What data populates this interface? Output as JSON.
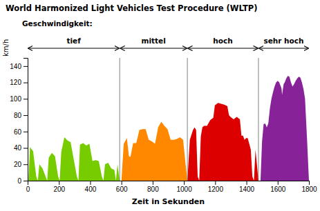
{
  "chart_data": {
    "type": "area",
    "title": "World Harmonized Light Vehicles Test Procedure (WLTP)",
    "x_label": "Zeit in Sekunden",
    "y_label": "km/h",
    "annotation": "Geschwindigkeit:",
    "phase_labels": [
      "tief",
      "mittel",
      "hoch",
      "sehr hoch"
    ],
    "phase_boundaries": [
      0,
      589,
      1022,
      1477,
      1800
    ],
    "xlim": [
      0,
      1800
    ],
    "ylim": [
      0,
      150
    ],
    "xticks": [
      0,
      200,
      400,
      600,
      800,
      1000,
      1200,
      1400,
      1600,
      1800
    ],
    "yticks": [
      0,
      20,
      40,
      60,
      80,
      100,
      120,
      140
    ],
    "grid": false,
    "series": [
      {
        "color": "#77CC00",
        "x": [
          0,
          5,
          15,
          35,
          55,
          65,
          75,
          95,
          115,
          125,
          135,
          155,
          175,
          195,
          205,
          215,
          235,
          255,
          275,
          295,
          315,
          325,
          335,
          355,
          375,
          395,
          415,
          435,
          455,
          475,
          485,
          495,
          515,
          535,
          555,
          565,
          575,
          589
        ],
        "values": [
          0,
          0,
          41,
          36,
          5,
          0,
          20,
          15,
          5,
          0,
          28,
          34,
          30,
          5,
          0,
          35,
          53,
          49,
          47,
          26,
          5,
          0,
          44,
          46,
          43,
          45,
          24,
          25,
          24,
          5,
          0,
          20,
          22,
          15,
          13,
          0,
          20,
          0
        ]
      },
      {
        "color": "#FF8800",
        "x": [
          589,
          600,
          615,
          635,
          648,
          658,
          675,
          695,
          715,
          735,
          755,
          775,
          795,
          815,
          835,
          855,
          875,
          895,
          915,
          935,
          955,
          975,
          995,
          1008,
          1022
        ],
        "values": [
          0,
          0,
          45,
          52,
          30,
          29,
          46,
          46,
          62,
          63,
          63,
          50,
          48,
          45,
          65,
          72,
          67,
          63,
          50,
          50,
          51,
          53,
          50,
          25,
          0
        ]
      },
      {
        "color": "#DD0000",
        "x": [
          1022,
          1038,
          1058,
          1068,
          1078,
          1088,
          1098,
          1108,
          1118,
          1128,
          1148,
          1168,
          1188,
          1198,
          1218,
          1238,
          1258,
          1278,
          1288,
          1298,
          1318,
          1338,
          1358,
          1368,
          1378,
          1388,
          1398,
          1408,
          1418,
          1428,
          1438,
          1448,
          1458,
          1477
        ],
        "values": [
          0,
          50,
          62,
          65,
          62,
          5,
          0,
          54,
          65,
          67,
          67,
          74,
          77,
          92,
          95,
          94,
          93,
          91,
          80,
          78,
          75,
          78,
          75,
          55,
          55,
          50,
          52,
          52,
          45,
          38,
          5,
          0,
          38,
          0
        ]
      },
      {
        "color": "#882299",
        "x": [
          1477,
          1490,
          1500,
          1510,
          1520,
          1530,
          1540,
          1550,
          1560,
          1570,
          1580,
          1590,
          1600,
          1610,
          1620,
          1625,
          1628,
          1632,
          1638,
          1645,
          1655,
          1665,
          1675,
          1685,
          1695,
          1705,
          1715,
          1725,
          1735,
          1745,
          1755,
          1765,
          1775,
          1788,
          1800
        ],
        "values": [
          0,
          0,
          48,
          69,
          70,
          65,
          70,
          88,
          100,
          108,
          115,
          120,
          122,
          120,
          115,
          112,
          105,
          110,
          118,
          120,
          125,
          128,
          127,
          120,
          115,
          118,
          122,
          125,
          127,
          126,
          120,
          112,
          100,
          50,
          0
        ]
      }
    ]
  }
}
